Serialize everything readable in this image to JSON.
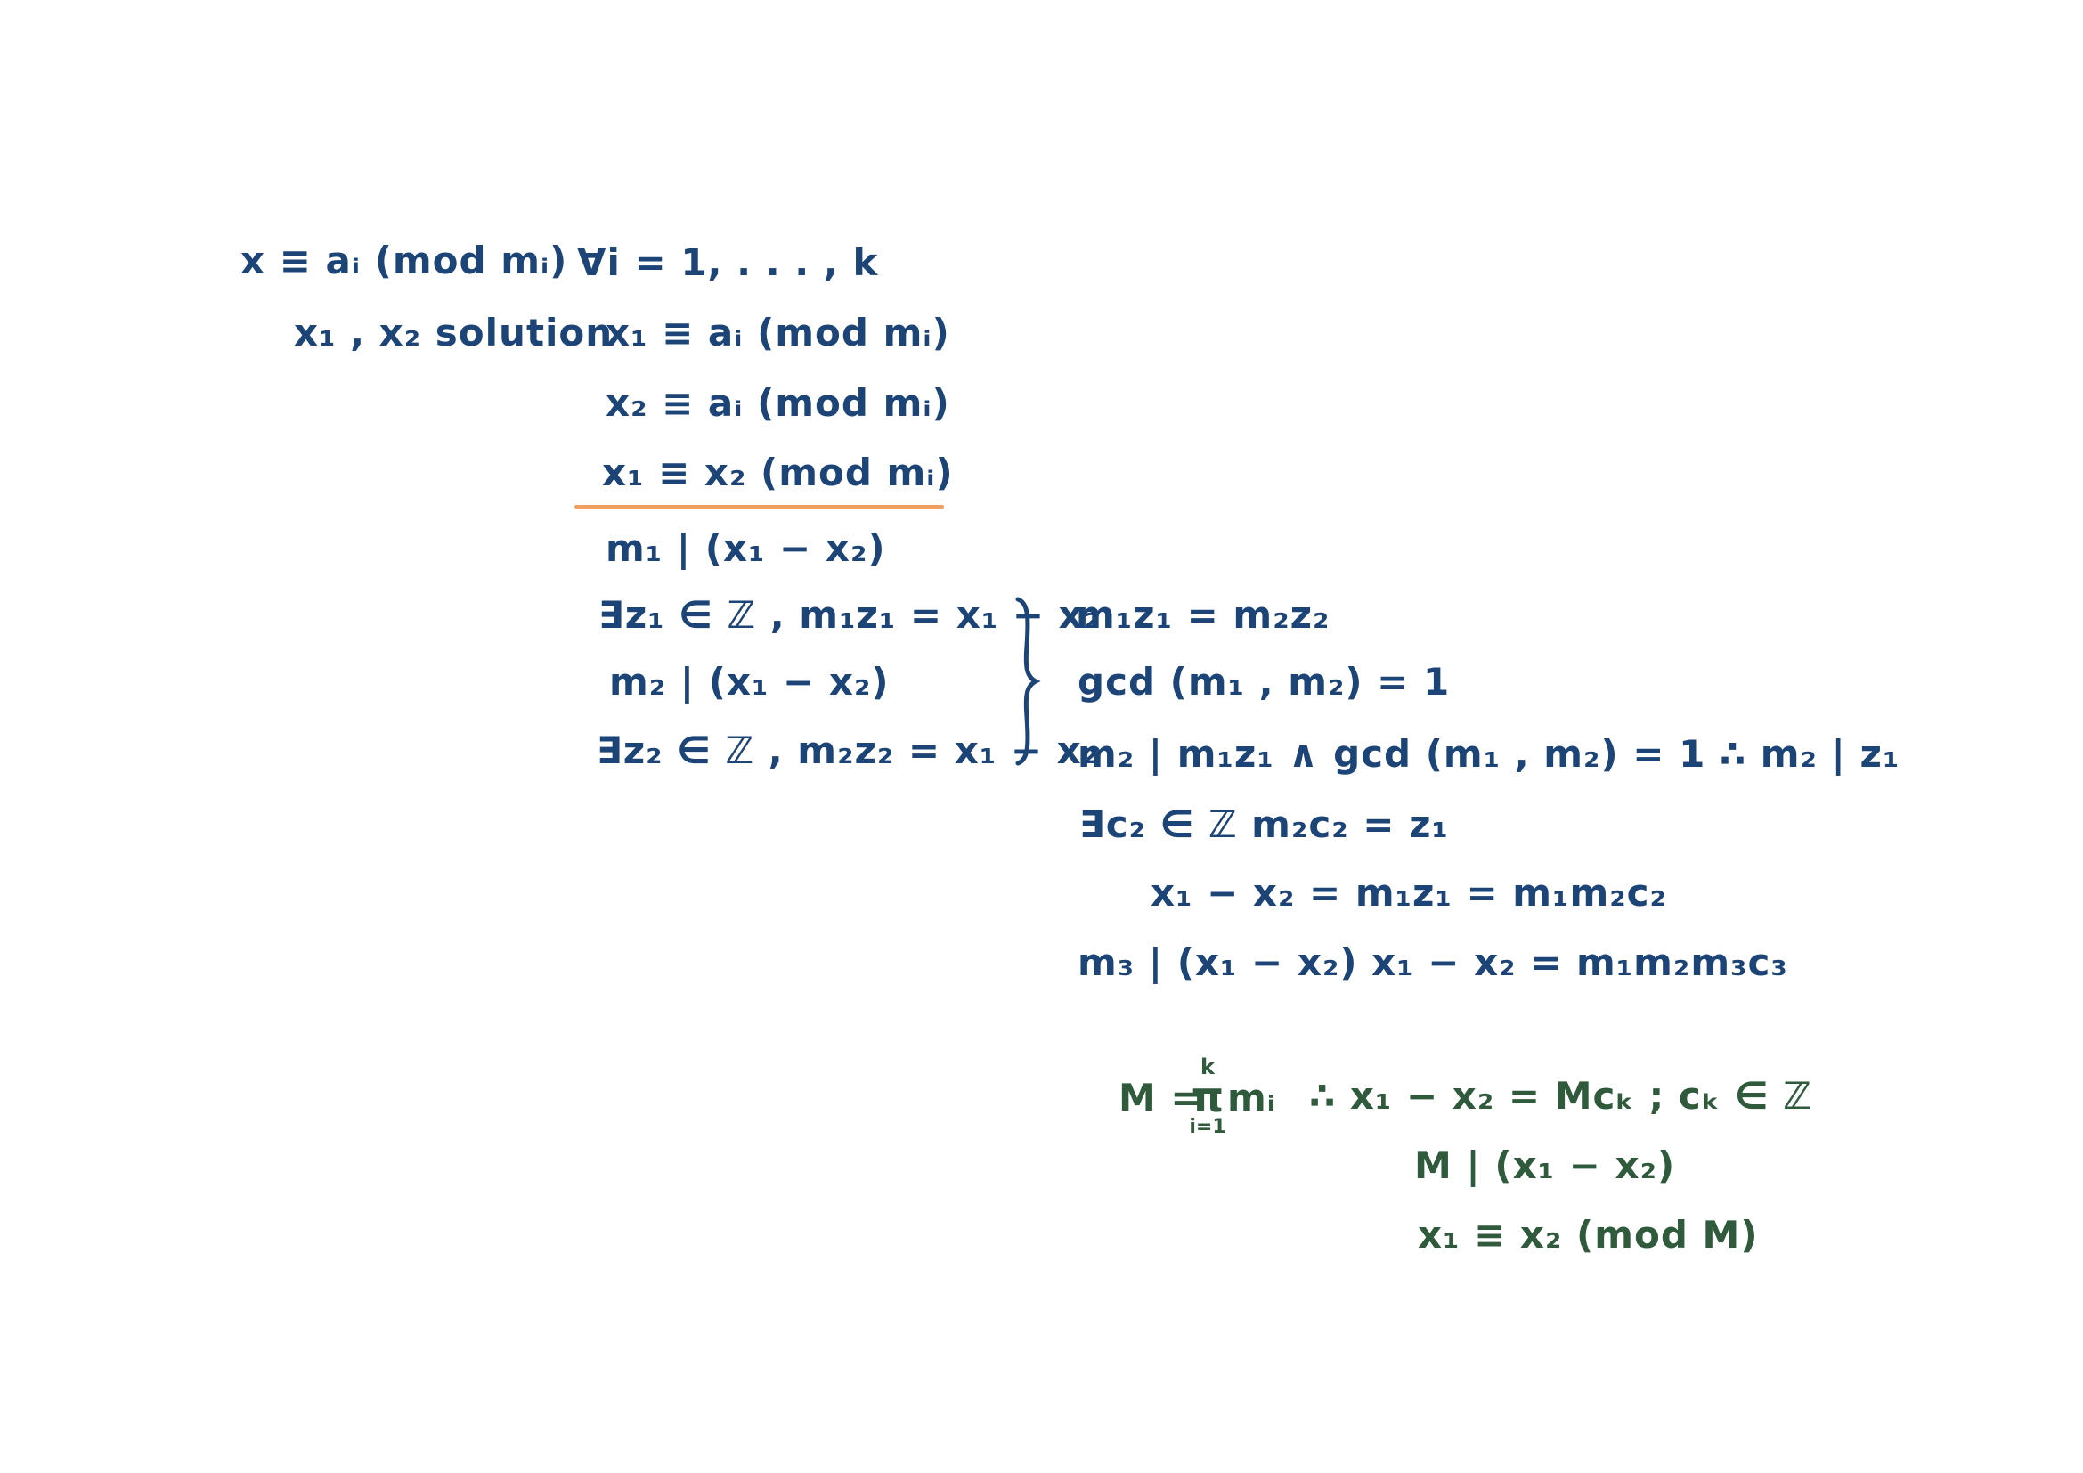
{
  "colors": {
    "ink_blue": "#1d4477",
    "ink_green": "#2f5a3b",
    "rule_orange": "#f0a060"
  },
  "lines": {
    "system": "x ≡ aᵢ (mod mᵢ)",
    "forall": "∀i = 1, . . . , k",
    "solutions": "x₁ , x₂  solution",
    "l1": "x₁ ≡ aᵢ (mod mᵢ)",
    "l2": "x₂ ≡ aᵢ (mod mᵢ)",
    "l3": "x₁ ≡ x₂ (mod mᵢ)",
    "l4": "m₁ | (x₁ − x₂)",
    "l5": "∃z₁ ∈ ℤ ,  m₁z₁ = x₁ − x₂",
    "l6": "m₂ | (x₁ − x₂)",
    "l7": "∃z₂ ∈ ℤ ,  m₂z₂ = x₁ − x₂",
    "r1": "m₁z₁ = m₂z₂",
    "r2": "gcd (m₁ , m₂) = 1",
    "r3": "m₂ | m₁z₁  ∧  gcd (m₁ , m₂) = 1   ∴  m₂ | z₁",
    "r4": "∃c₂ ∈ ℤ     m₂c₂ = z₁",
    "r5": "x₁ − x₂ = m₁z₁ = m₁m₂c₂",
    "r6": "m₃ | (x₁ − x₂)    x₁ − x₂ = m₁m₂m₃c₃",
    "g1_lhs": "M =",
    "g1_prod_top": "k",
    "g1_prod_sym": "π",
    "g1_prod_bot": "i=1",
    "g1_mi": "mᵢ",
    "g1_rest": "∴  x₁ − x₂ = Mcₖ   ;  cₖ ∈ ℤ",
    "g2": "M | (x₁ − x₂)",
    "g3": "x₁ ≡ x₂ (mod M)"
  }
}
